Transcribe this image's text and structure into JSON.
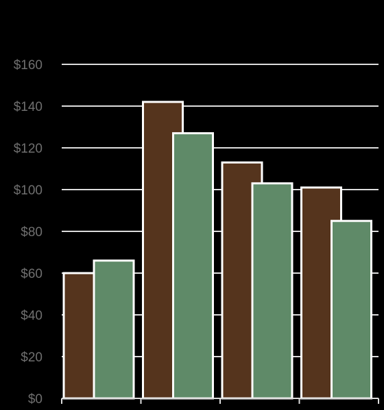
{
  "chart_data": {
    "type": "bar",
    "title": "",
    "xlabel": "",
    "ylabel": "",
    "ylim": [
      0,
      160
    ],
    "yticks": [
      0,
      20,
      40,
      60,
      80,
      100,
      120,
      140,
      160
    ],
    "ytick_labels": [
      "$0",
      "$20",
      "$40",
      "$60",
      "$80",
      "$100",
      "$120",
      "$140",
      "$160"
    ],
    "categories": [
      "",
      "",
      "",
      ""
    ],
    "grid": true,
    "legend": "none",
    "series": [
      {
        "color": "#55341d",
        "values": [
          60,
          142,
          113,
          101
        ]
      },
      {
        "color": "#5f8a68",
        "values": [
          66,
          127,
          103,
          85
        ]
      }
    ],
    "background": "#000000",
    "gridline_color": "#dddddd",
    "bar_outline_color": "#ffffff"
  }
}
